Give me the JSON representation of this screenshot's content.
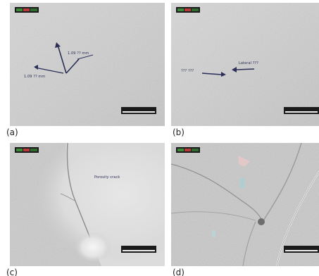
{
  "panels": [
    {
      "label": "(a)",
      "annotations": [
        "1.09 ?? mm",
        "1.09 ?? mm"
      ]
    },
    {
      "label": "(b)",
      "annotations": [
        "Lateral ???",
        "??? ???"
      ]
    },
    {
      "label": "(c)",
      "annotations": [
        "Porosity crack"
      ]
    },
    {
      "label": "(d)",
      "annotations": []
    }
  ]
}
